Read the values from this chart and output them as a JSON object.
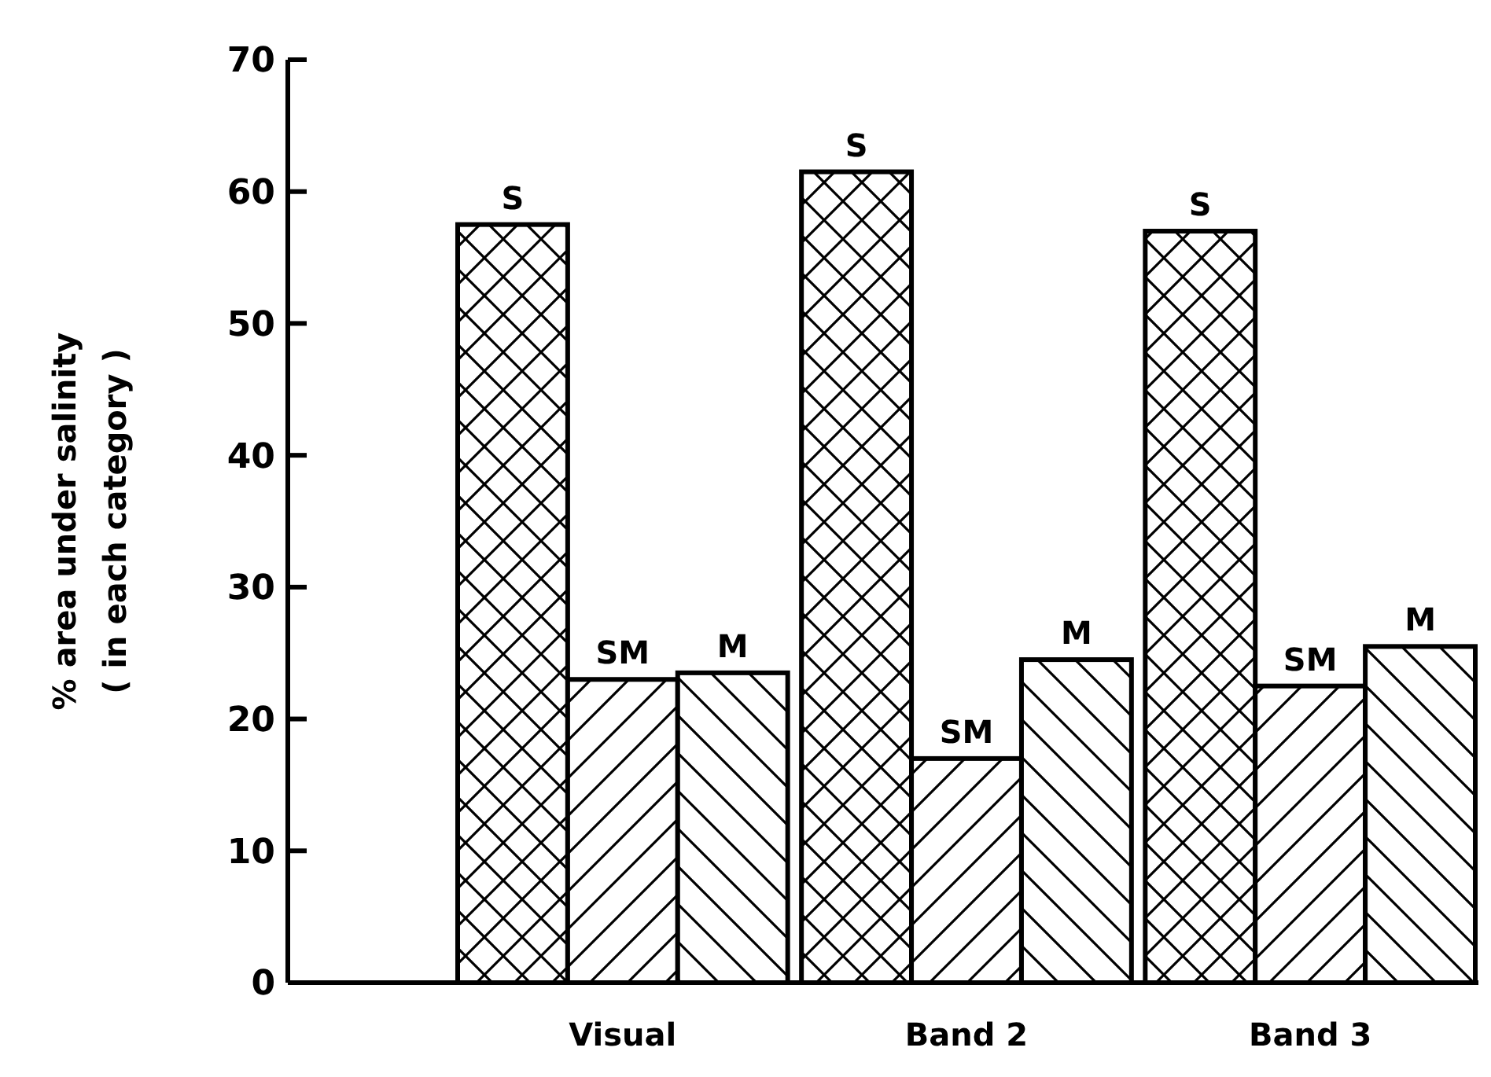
{
  "chart_data": {
    "type": "bar",
    "ylabel": "% area under salinity\n( in each category )",
    "categories": [
      "Visual",
      "Band 2",
      "Band 3"
    ],
    "series": [
      {
        "name": "S",
        "color": "#000000",
        "values": [
          57.5,
          61.5,
          57
        ]
      },
      {
        "name": "SM",
        "color": "#000000",
        "values": [
          23,
          17,
          22.5
        ]
      },
      {
        "name": "M",
        "color": "#000000",
        "values": [
          23.5,
          24.5,
          25.5
        ]
      }
    ],
    "ylim": [
      0,
      70
    ],
    "yticks": [
      0,
      10,
      20,
      30,
      40,
      50,
      60,
      70
    ],
    "grid": false
  }
}
